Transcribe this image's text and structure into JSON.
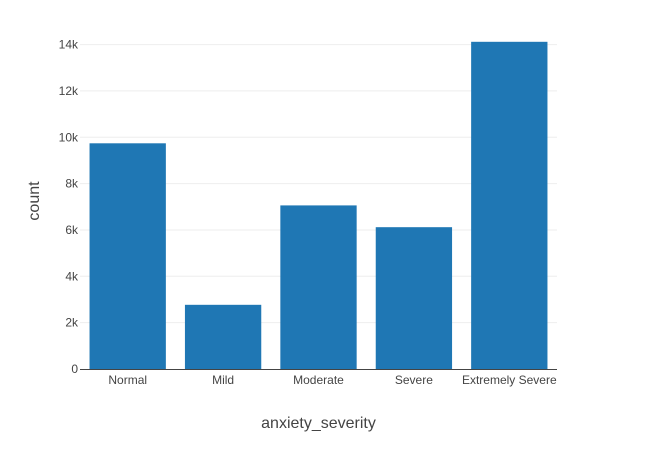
{
  "chart_data": {
    "type": "bar",
    "categories": [
      "Normal",
      "Mild",
      "Moderate",
      "Severe",
      "Extremely Severe"
    ],
    "values": [
      9740,
      2770,
      7060,
      6120,
      14120
    ],
    "xlabel": "anxiety_severity",
    "ylabel": "count",
    "ylim": [
      0,
      14500
    ],
    "y_ticks": [
      0,
      2000,
      4000,
      6000,
      8000,
      10000,
      12000,
      14000
    ],
    "y_tick_labels": [
      "0",
      "2k",
      "4k",
      "6k",
      "8k",
      "10k",
      "12k",
      "14k"
    ],
    "grid": true,
    "legend": "none",
    "bar_color": "#1f77b4"
  }
}
